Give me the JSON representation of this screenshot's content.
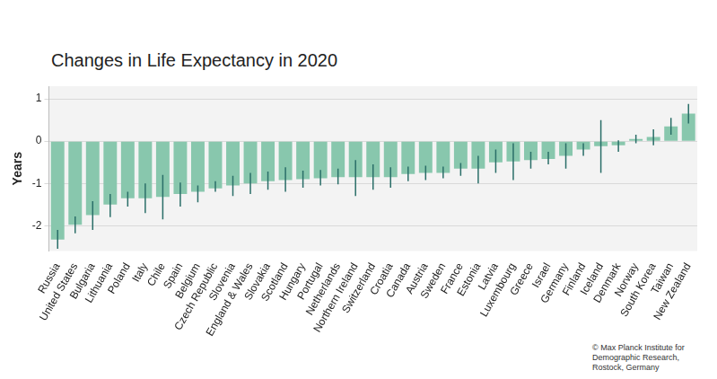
{
  "chart_data": {
    "type": "bar",
    "title": "Changes in Life Expectancy in 2020",
    "y_label": "Years",
    "source": "© Max Planck Institute for Demographic Research, Rostock, Germany",
    "categories": [
      "Russia",
      "United States",
      "Bulgaria",
      "Lithuania",
      "Poland",
      "Italy",
      "Chile",
      "Spain",
      "Belgium",
      "Czech Republic",
      "Slovenia",
      "England & Wales",
      "Slovakia",
      "Scotland",
      "Hungary",
      "Portugal",
      "Netherlands",
      "Northern Ireland",
      "Switzerland",
      "Croatia",
      "Canada",
      "Austria",
      "Sweden",
      "France",
      "Estonia",
      "Latvia",
      "Luxembourg",
      "Greece",
      "Israel",
      "Germany",
      "Finland",
      "Iceland",
      "Denmark",
      "Norway",
      "South Korea",
      "Taiwan",
      "New Zealand"
    ],
    "values": [
      -2.33,
      -1.98,
      -1.75,
      -1.5,
      -1.35,
      -1.35,
      -1.32,
      -1.25,
      -1.2,
      -1.12,
      -1.05,
      -1.0,
      -0.95,
      -0.92,
      -0.9,
      -0.88,
      -0.85,
      -0.85,
      -0.85,
      -0.85,
      -0.78,
      -0.75,
      -0.75,
      -0.65,
      -0.65,
      -0.5,
      -0.48,
      -0.45,
      -0.42,
      -0.35,
      -0.2,
      -0.12,
      -0.1,
      0.05,
      0.1,
      0.35,
      0.65
    ],
    "error_low": [
      -2.55,
      -2.18,
      -2.1,
      -1.8,
      -1.55,
      -1.7,
      -1.85,
      -1.55,
      -1.45,
      -1.2,
      -1.3,
      -1.25,
      -1.15,
      -1.2,
      -1.1,
      -1.05,
      -1.02,
      -1.3,
      -1.15,
      -1.1,
      -0.95,
      -0.92,
      -0.88,
      -0.82,
      -1.0,
      -0.75,
      -0.92,
      -0.65,
      -0.55,
      -0.65,
      -0.35,
      -0.75,
      -0.25,
      -0.05,
      -0.1,
      0.15,
      0.42
    ],
    "error_high": [
      -2.1,
      -1.78,
      -1.42,
      -1.25,
      -1.2,
      -1.0,
      -0.8,
      -0.98,
      -1.05,
      -0.95,
      -0.82,
      -0.75,
      -0.72,
      -0.62,
      -0.7,
      -0.68,
      -0.65,
      -0.45,
      -0.55,
      -0.62,
      -0.6,
      -0.58,
      -0.6,
      -0.52,
      -0.35,
      -0.2,
      -0.05,
      -0.25,
      -0.25,
      -0.05,
      -0.05,
      0.5,
      0.02,
      0.15,
      0.28,
      0.55,
      0.88
    ],
    "color": "#88c7ad",
    "error_color": "#2a6e68",
    "ylim": [
      -2.6,
      1.3
    ],
    "yticks": [
      -2,
      -1,
      0,
      1
    ],
    "grid": true
  }
}
